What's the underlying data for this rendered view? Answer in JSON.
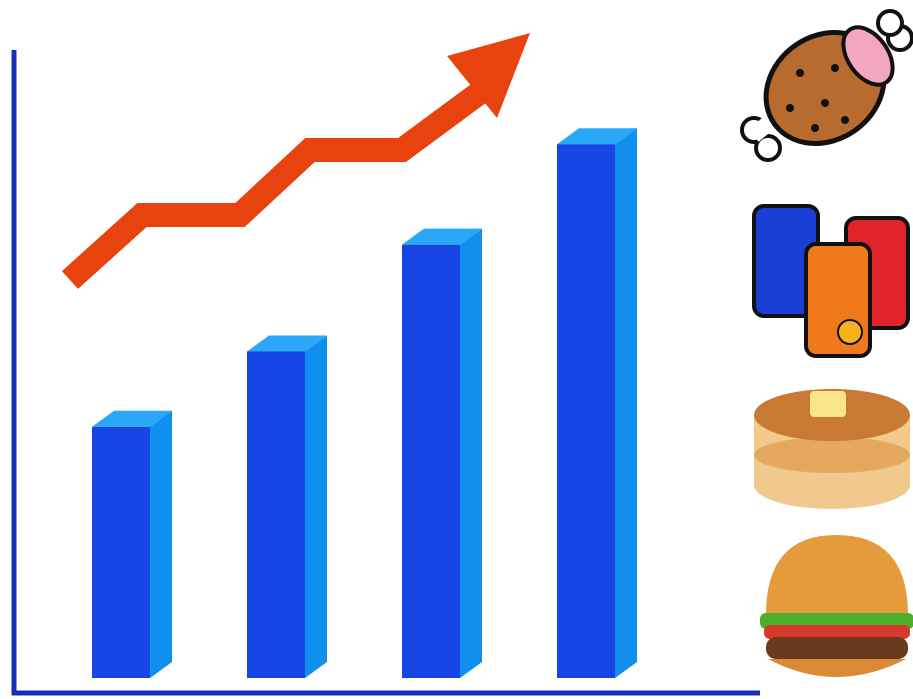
{
  "chart_data": {
    "type": "bar",
    "categories": [
      null,
      null,
      null,
      null
    ],
    "values": [
      40,
      52,
      69,
      85
    ],
    "color": "#1846e6",
    "ylim": [
      0,
      100
    ]
  }
}
